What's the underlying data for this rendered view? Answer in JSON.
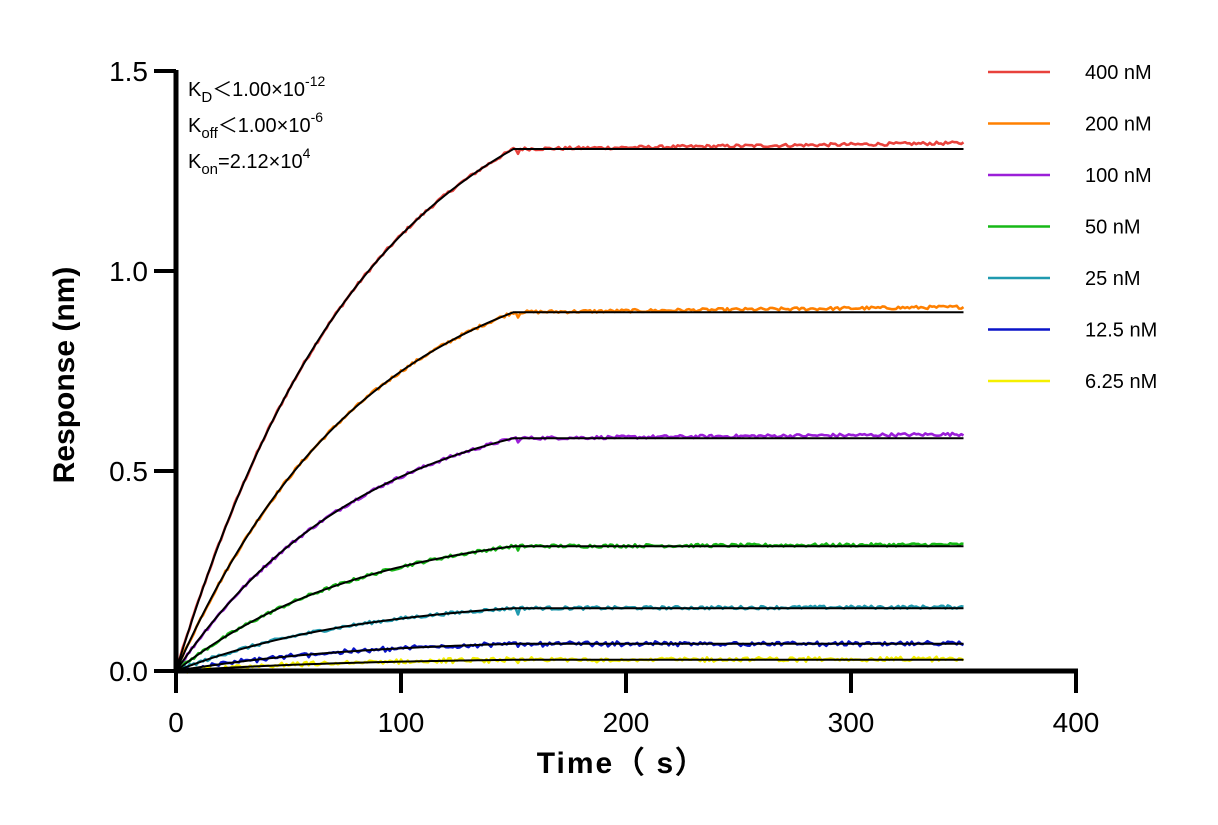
{
  "chart_data": {
    "type": "line",
    "title": "",
    "xlabel": "Time（ s）",
    "ylabel": "Response (nm)",
    "xlim": [
      0,
      400
    ],
    "ylim": [
      0,
      1.5
    ],
    "xticks": [
      0,
      100,
      200,
      300,
      400
    ],
    "xtick_labels": [
      "0",
      "100",
      "200",
      "300",
      "400"
    ],
    "yticks": [
      0,
      0.5,
      1.0,
      1.5
    ],
    "ytick_labels": [
      "0.0",
      "0.5",
      "1.0",
      "1.5"
    ],
    "grid": false,
    "legend_position": "right",
    "association_end_s": 150,
    "dissociation_end_s": 350,
    "fit_color": "#000000",
    "annotations": {
      "kd": {
        "symbol": "K",
        "sub": "D",
        "text": "＜1.00×10",
        "sup": "-12"
      },
      "koff": {
        "symbol": "K",
        "sub": "off",
        "text": "＜1.00×10",
        "sup": "-6"
      },
      "kon": {
        "symbol": "K",
        "sub": "on",
        "text": "=2.12×10",
        "sup": "4"
      }
    },
    "series": [
      {
        "name": "400 nM",
        "color": "#e8423c",
        "plateau": 1.305,
        "dissociation_end": 1.32
      },
      {
        "name": "200 nM",
        "color": "#ff8000",
        "plateau": 0.897,
        "dissociation_end": 0.91
      },
      {
        "name": "100 nM",
        "color": "#9b1fd8",
        "plateau": 0.582,
        "dissociation_end": 0.592
      },
      {
        "name": "50 nM",
        "color": "#16b816",
        "plateau": 0.312,
        "dissociation_end": 0.316
      },
      {
        "name": "25 nM",
        "color": "#1f9aaf",
        "plateau": 0.157,
        "dissociation_end": 0.16
      },
      {
        "name": "12.5 nM",
        "color": "#0a14c8",
        "plateau": 0.068,
        "dissociation_end": 0.068
      },
      {
        "name": "6.25 nM",
        "color": "#f5f000",
        "plateau": 0.028,
        "dissociation_end": 0.03
      }
    ]
  }
}
